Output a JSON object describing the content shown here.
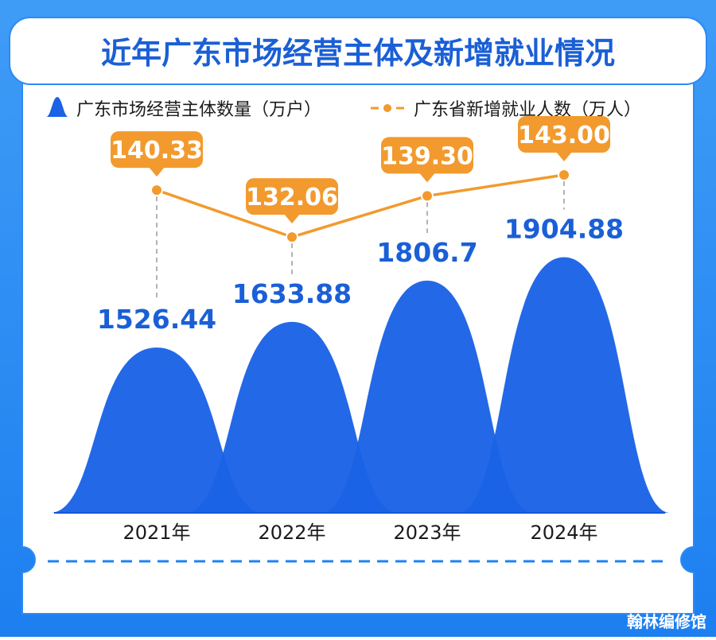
{
  "colors": {
    "blue": "#1a62e6",
    "blue_dark": "#0d3fb8",
    "orange": "#f29a2e",
    "frame": "#1d82f2",
    "title_text": "#1a5fd6"
  },
  "chart_data": {
    "type": "area",
    "title": "近年广东市场经营主体及新增就业情况",
    "categories": [
      "2021年",
      "2022年",
      "2023年",
      "2024年"
    ],
    "series": [
      {
        "name": "广东市场经营主体数量（万户）",
        "type": "area",
        "values": [
          1526.44,
          1633.88,
          1806.7,
          1904.88
        ],
        "labels": [
          "1526.44",
          "1633.88",
          "1806.7",
          "1904.88"
        ]
      },
      {
        "name": "广东省新增就业人数（万人）",
        "type": "line",
        "values": [
          140.33,
          132.06,
          139.3,
          143.0
        ],
        "labels": [
          "140.33",
          "132.06",
          "139.30",
          "143.00"
        ]
      }
    ],
    "legend": "top-left",
    "grid": false
  },
  "watermark": "翰林编修馆"
}
